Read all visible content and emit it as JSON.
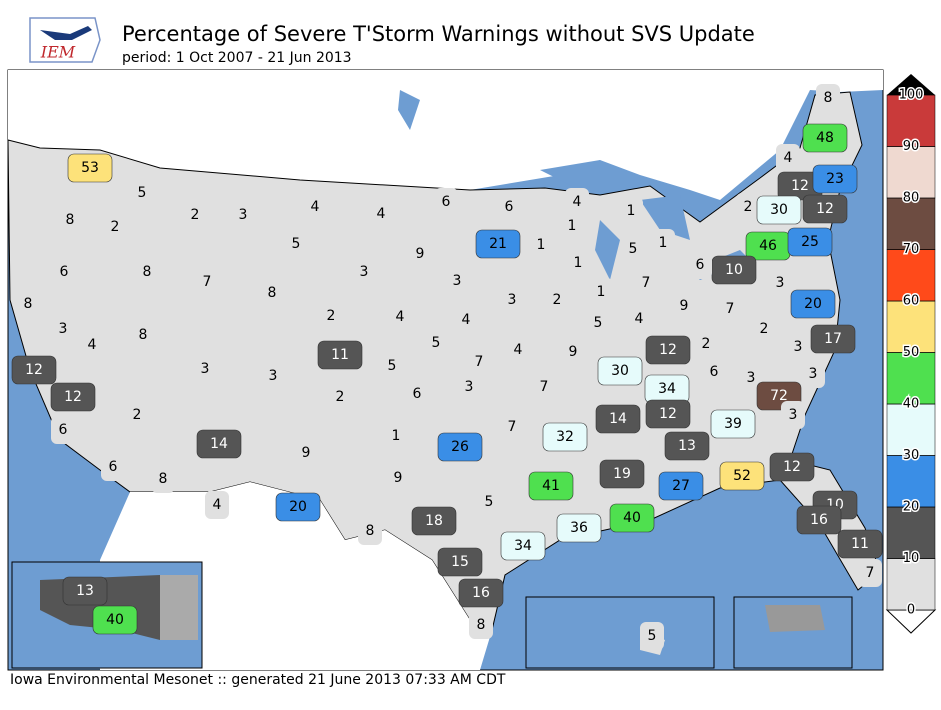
{
  "chart_data": {
    "type": "choropleth",
    "logo": "IEM",
    "title": "Percentage of Severe T'Storm Warnings without SVS Update",
    "subtitle": "period: 1 Oct 2007 - 21 Jun 2013",
    "footer": "Iowa Environmental Mesonet :: generated 21 June 2013 07:33 AM CDT",
    "values": [
      53,
      5,
      2,
      3,
      4,
      4,
      6,
      6,
      4,
      1,
      8,
      48,
      4,
      12,
      23,
      2,
      30,
      12,
      46,
      25,
      10,
      6,
      21,
      1,
      1,
      1,
      5,
      1,
      8,
      2,
      5,
      9,
      6,
      8,
      7,
      3,
      3,
      8,
      3,
      2,
      1,
      7,
      9,
      7,
      3,
      20,
      8,
      3,
      8,
      4,
      2,
      4,
      4,
      5,
      5,
      4,
      12,
      2,
      2,
      17,
      3,
      12,
      11,
      5,
      7,
      4,
      9,
      3,
      3,
      6,
      3,
      7,
      30,
      34,
      6,
      3,
      72,
      3,
      12,
      2,
      2,
      6,
      3,
      14,
      1,
      26,
      7,
      32,
      14,
      12,
      39,
      13,
      9,
      6,
      8,
      9,
      41,
      19,
      27,
      52,
      12,
      4,
      20,
      5,
      8,
      18,
      40,
      36,
      34,
      10,
      16,
      11,
      15,
      7,
      16,
      8,
      13,
      40,
      5
    ],
    "colorbar_ticks": [
      0,
      10,
      20,
      30,
      40,
      50,
      60,
      70,
      80,
      90,
      100
    ],
    "colors": [
      "#e0e0e0",
      "#555555",
      "#3a8ee6",
      "#e6fbfb",
      "#4fe04f",
      "#fde27a",
      "#ff4a1a",
      "#6d4c41",
      "#efd9d0",
      "#c93a3a"
    ]
  }
}
